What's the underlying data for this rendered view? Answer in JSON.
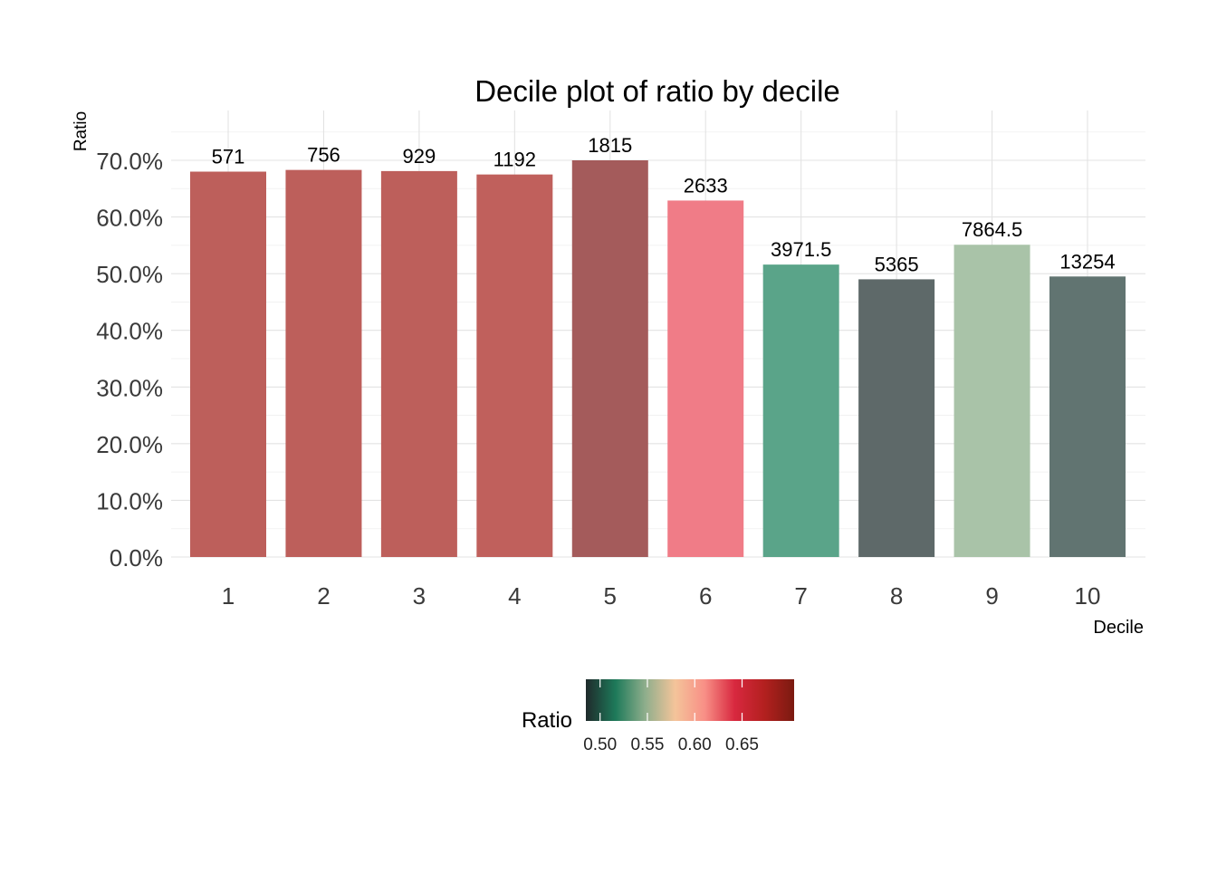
{
  "chart_data": {
    "type": "bar",
    "title": "Decile plot of ratio by decile",
    "xlabel": "Decile",
    "ylabel": "Ratio",
    "categories": [
      "1",
      "2",
      "3",
      "4",
      "5",
      "6",
      "7",
      "8",
      "9",
      "10"
    ],
    "values": [
      0.68,
      0.683,
      0.681,
      0.675,
      0.7,
      0.629,
      0.516,
      0.49,
      0.551,
      0.495
    ],
    "bar_labels": [
      "571",
      "756",
      "929",
      "1192",
      "1815",
      "2633",
      "3971.5",
      "5365",
      "7864.5",
      "13254"
    ],
    "bar_colors": [
      "#bd5f5b",
      "#bd5f5b",
      "#bd5f5b",
      "#c0605c",
      "#a45b5b",
      "#f07c87",
      "#5aa489",
      "#5e6969",
      "#a9c3a8",
      "#617471"
    ],
    "ylim": [
      0,
      0.7
    ],
    "yticks": [
      0,
      0.1,
      0.2,
      0.3,
      0.4,
      0.5,
      0.6,
      0.7
    ],
    "ytick_labels": [
      "0.0%",
      "10.0%",
      "20.0%",
      "30.0%",
      "40.0%",
      "50.0%",
      "60.0%",
      "70.0%"
    ],
    "grid": true,
    "legend": {
      "title": "Ratio",
      "position": "bottom",
      "range": [
        0.485,
        0.705
      ],
      "ticks": [
        0.5,
        0.55,
        0.6,
        0.65
      ],
      "tick_labels": [
        "0.50",
        "0.55",
        "0.60",
        "0.65"
      ],
      "colors": [
        "#1f2a2b",
        "#1e7a5a",
        "#8fae8c",
        "#f4c49a",
        "#f88f86",
        "#d8283f",
        "#b3201f",
        "#7a1a10"
      ]
    }
  }
}
